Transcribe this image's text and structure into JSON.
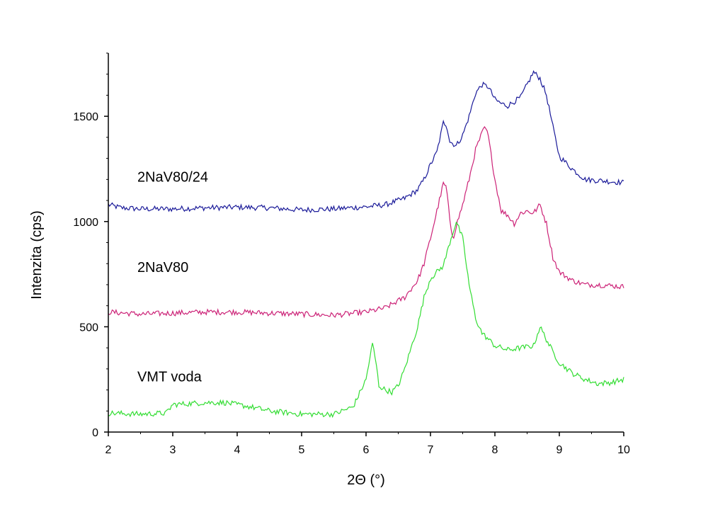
{
  "chart_data": {
    "type": "line",
    "xlabel": "2Θ (°)",
    "ylabel": "Intenzita (cps)",
    "xlim": [
      2,
      10
    ],
    "ylim": [
      0,
      1800
    ],
    "xticks": [
      2,
      3,
      4,
      5,
      6,
      7,
      8,
      9,
      10
    ],
    "yticks": [
      0,
      500,
      1000,
      1500
    ],
    "grid": false,
    "series": [
      {
        "name": "2NaV80/24",
        "color": "#1a1a99",
        "points": [
          [
            2.0,
            1080
          ],
          [
            2.2,
            1065
          ],
          [
            2.5,
            1060
          ],
          [
            3.0,
            1060
          ],
          [
            3.5,
            1065
          ],
          [
            4.0,
            1068
          ],
          [
            4.5,
            1065
          ],
          [
            5.0,
            1055
          ],
          [
            5.5,
            1060
          ],
          [
            6.0,
            1070
          ],
          [
            6.3,
            1080
          ],
          [
            6.6,
            1110
          ],
          [
            6.8,
            1150
          ],
          [
            6.9,
            1200
          ],
          [
            7.0,
            1270
          ],
          [
            7.1,
            1330
          ],
          [
            7.2,
            1470
          ],
          [
            7.25,
            1460
          ],
          [
            7.3,
            1380
          ],
          [
            7.4,
            1360
          ],
          [
            7.5,
            1410
          ],
          [
            7.6,
            1500
          ],
          [
            7.7,
            1610
          ],
          [
            7.8,
            1650
          ],
          [
            7.9,
            1640
          ],
          [
            8.0,
            1580
          ],
          [
            8.1,
            1560
          ],
          [
            8.2,
            1550
          ],
          [
            8.3,
            1570
          ],
          [
            8.4,
            1590
          ],
          [
            8.5,
            1650
          ],
          [
            8.6,
            1710
          ],
          [
            8.7,
            1680
          ],
          [
            8.8,
            1600
          ],
          [
            8.9,
            1450
          ],
          [
            9.0,
            1310
          ],
          [
            9.2,
            1250
          ],
          [
            9.4,
            1200
          ],
          [
            9.6,
            1195
          ],
          [
            9.8,
            1190
          ],
          [
            10.0,
            1185
          ]
        ]
      },
      {
        "name": "2NaV80",
        "color": "#cc2277",
        "points": [
          [
            2.0,
            570
          ],
          [
            2.5,
            560
          ],
          [
            3.0,
            565
          ],
          [
            3.5,
            570
          ],
          [
            4.0,
            570
          ],
          [
            4.5,
            565
          ],
          [
            5.0,
            560
          ],
          [
            5.5,
            555
          ],
          [
            6.0,
            570
          ],
          [
            6.3,
            590
          ],
          [
            6.6,
            640
          ],
          [
            6.8,
            720
          ],
          [
            6.9,
            800
          ],
          [
            7.0,
            920
          ],
          [
            7.1,
            1050
          ],
          [
            7.2,
            1180
          ],
          [
            7.25,
            1160
          ],
          [
            7.3,
            1000
          ],
          [
            7.35,
            920
          ],
          [
            7.4,
            980
          ],
          [
            7.5,
            1080
          ],
          [
            7.6,
            1200
          ],
          [
            7.7,
            1340
          ],
          [
            7.8,
            1420
          ],
          [
            7.85,
            1450
          ],
          [
            7.9,
            1400
          ],
          [
            8.0,
            1200
          ],
          [
            8.1,
            1050
          ],
          [
            8.2,
            1030
          ],
          [
            8.3,
            990
          ],
          [
            8.4,
            1040
          ],
          [
            8.5,
            1050
          ],
          [
            8.6,
            1040
          ],
          [
            8.7,
            1080
          ],
          [
            8.8,
            990
          ],
          [
            8.9,
            830
          ],
          [
            9.0,
            760
          ],
          [
            9.2,
            720
          ],
          [
            9.4,
            700
          ],
          [
            9.6,
            700
          ],
          [
            9.8,
            695
          ],
          [
            10.0,
            690
          ]
        ]
      },
      {
        "name": "VMT voda",
        "color": "#33dd33",
        "points": [
          [
            2.0,
            90
          ],
          [
            2.5,
            85
          ],
          [
            2.9,
            90
          ],
          [
            3.0,
            130
          ],
          [
            3.5,
            140
          ],
          [
            3.8,
            140
          ],
          [
            4.2,
            120
          ],
          [
            4.5,
            100
          ],
          [
            5.0,
            85
          ],
          [
            5.5,
            85
          ],
          [
            5.8,
            120
          ],
          [
            6.0,
            250
          ],
          [
            6.1,
            420
          ],
          [
            6.15,
            340
          ],
          [
            6.2,
            220
          ],
          [
            6.3,
            200
          ],
          [
            6.4,
            190
          ],
          [
            6.5,
            220
          ],
          [
            6.6,
            300
          ],
          [
            6.7,
            400
          ],
          [
            6.8,
            500
          ],
          [
            6.9,
            640
          ],
          [
            7.0,
            730
          ],
          [
            7.1,
            760
          ],
          [
            7.2,
            790
          ],
          [
            7.3,
            900
          ],
          [
            7.4,
            1000
          ],
          [
            7.5,
            920
          ],
          [
            7.6,
            700
          ],
          [
            7.7,
            540
          ],
          [
            7.8,
            470
          ],
          [
            7.9,
            440
          ],
          [
            8.0,
            410
          ],
          [
            8.2,
            390
          ],
          [
            8.4,
            400
          ],
          [
            8.6,
            410
          ],
          [
            8.7,
            500
          ],
          [
            8.8,
            440
          ],
          [
            8.9,
            380
          ],
          [
            9.0,
            330
          ],
          [
            9.2,
            280
          ],
          [
            9.4,
            250
          ],
          [
            9.6,
            230
          ],
          [
            9.8,
            235
          ],
          [
            10.0,
            250
          ]
        ]
      }
    ],
    "annotations": [
      {
        "text": "2NaV80/24",
        "x": 2.45,
        "y": 1190
      },
      {
        "text": "2NaV80",
        "x": 2.45,
        "y": 760
      },
      {
        "text": "VMT voda",
        "x": 2.45,
        "y": 240
      }
    ]
  }
}
